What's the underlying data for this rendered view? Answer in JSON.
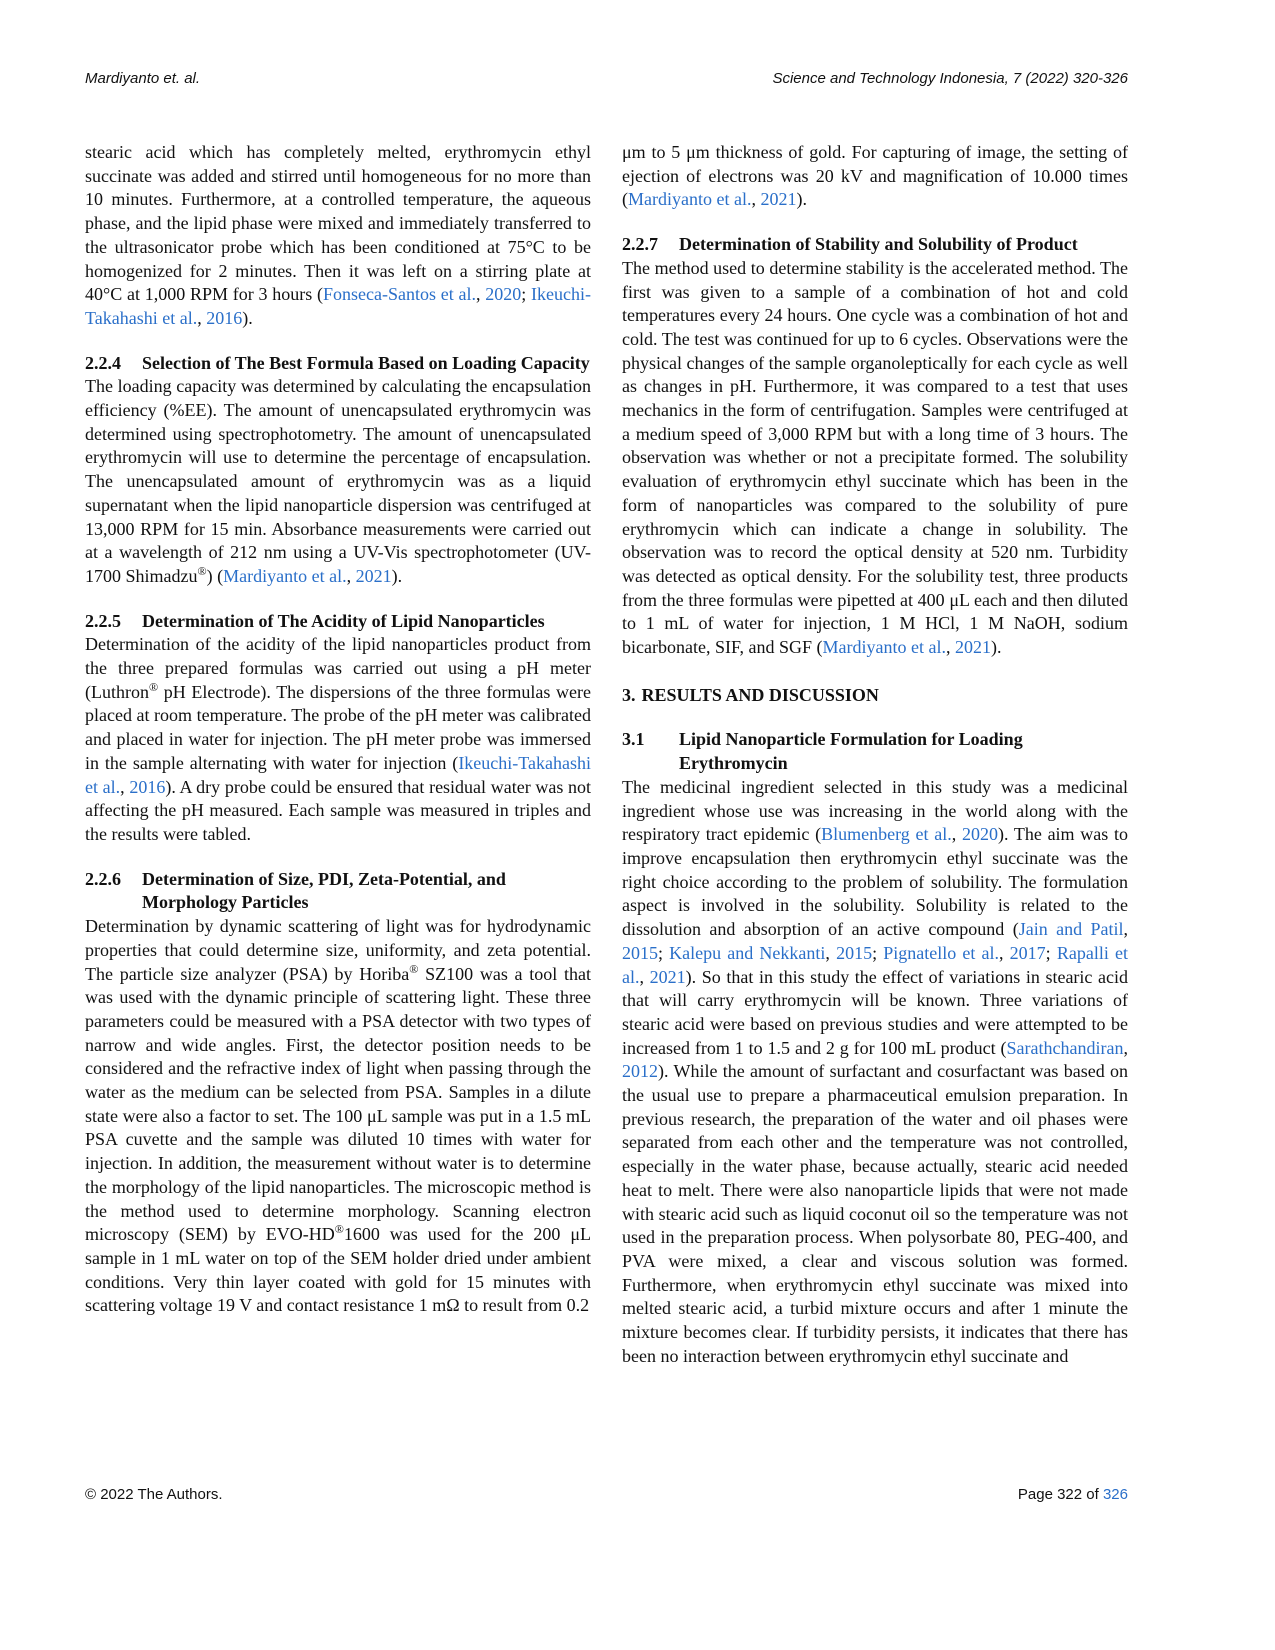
{
  "header": {
    "left": "Mardiyanto et. al.",
    "right": "Science and Technology Indonesia, 7 (2022) 320-326"
  },
  "columns": [
    {
      "blocks": [
        {
          "type": "para",
          "segments": [
            {
              "t": "stearic acid which has completely melted, erythromycin ethyl succinate was added and stirred until homogeneous for no more than 10 minutes. Furthermore, at a controlled temperature, the aqueous phase, and the lipid phase were mixed and immediately transferred to the ultrasonicator probe which has been conditioned at 75°C to be homogenized for 2 minutes. Then it was left on a stirring plate at 40°C at 1,000 RPM for 3 hours ("
            },
            {
              "t": "Fonseca-Santos et al.",
              "link": true
            },
            {
              "t": ", "
            },
            {
              "t": "2020",
              "link": true
            },
            {
              "t": "; "
            },
            {
              "t": "Ikeuchi-Takahashi et al.",
              "link": true
            },
            {
              "t": ", "
            },
            {
              "t": "2016",
              "link": true
            },
            {
              "t": ")."
            }
          ]
        },
        {
          "type": "heading",
          "num": "2.2.4",
          "title": "Selection of The Best Formula Based on Loading Capacity"
        },
        {
          "type": "para",
          "segments": [
            {
              "t": "The loading capacity was determined by calculating the encapsulation efficiency (%EE). The amount of unencapsulated erythromycin was determined using spectrophotometry. The amount of unencapsulated erythromycin will use to determine the percentage of encapsulation. The unencapsulated amount of erythromycin was as a liquid supernatant when the lipid nanoparticle dispersion was centrifuged at 13,000 RPM for 15 min. Absorbance measurements were carried out at a wavelength of 212 nm using a UV-Vis spectrophotometer (UV-1700 Shimadzu"
            },
            {
              "t": "®",
              "sup": true
            },
            {
              "t": ") ("
            },
            {
              "t": "Mardiyanto et al.",
              "link": true
            },
            {
              "t": ", "
            },
            {
              "t": "2021",
              "link": true
            },
            {
              "t": ")."
            }
          ]
        },
        {
          "type": "heading",
          "num": "2.2.5",
          "title": "Determination of The Acidity of Lipid Nanoparticles"
        },
        {
          "type": "para",
          "segments": [
            {
              "t": "Determination of the acidity of the lipid nanoparticles product from the three prepared formulas was carried out using a pH meter (Luthron"
            },
            {
              "t": "®",
              "sup": true
            },
            {
              "t": " pH Electrode). The dispersions of the three formulas were placed at room temperature. The probe of the pH meter was calibrated and placed in water for injection. The pH meter probe was immersed in the sample alternating with water for injection ("
            },
            {
              "t": "Ikeuchi-Takahashi et al.",
              "link": true
            },
            {
              "t": ", "
            },
            {
              "t": "2016",
              "link": true
            },
            {
              "t": "). A dry probe could be ensured that residual water was not affecting the pH measured. Each sample was measured in triples and the results were tabled."
            }
          ]
        },
        {
          "type": "heading",
          "num": "2.2.6",
          "title": "Determination of Size, PDI, Zeta-Potential, and Morphology Particles"
        },
        {
          "type": "para",
          "segments": [
            {
              "t": "Determination by dynamic scattering of light was for hydrodynamic properties that could determine size, uniformity, and zeta potential. The particle size analyzer (PSA) by Horiba"
            },
            {
              "t": "®",
              "sup": true
            },
            {
              "t": " SZ100 was a tool that was used with the dynamic principle of scattering light. These three parameters could be measured with a PSA detector with two types of narrow and wide angles. First, the detector position needs to be considered and the refractive index of light when passing through the water as the medium can be selected from PSA. Samples in a dilute state were also a factor to set. The 100 μL sample was put in a 1.5 mL PSA cuvette and the sample was diluted 10 times with water for injection. In addition, the measurement without water is to determine the morphology of the lipid nanoparticles. The microscopic method is the method used to determine morphology. Scanning electron microscopy (SEM) by EVO-HD"
            },
            {
              "t": "®",
              "sup": true
            },
            {
              "t": "1600 was used for the 200 μL sample in 1 mL water on top of the SEM holder dried under ambient conditions. Very thin layer coated with gold for 15 minutes with scattering voltage 19 V and contact resistance 1 mΩ to result from 0.2"
            }
          ]
        }
      ]
    },
    {
      "blocks": [
        {
          "type": "para",
          "segments": [
            {
              "t": "μm to 5 μm thickness of gold. For capturing of image, the setting of ejection of electrons was 20 kV and magnification of 10.000 times ("
            },
            {
              "t": "Mardiyanto et al.",
              "link": true
            },
            {
              "t": ", "
            },
            {
              "t": "2021",
              "link": true
            },
            {
              "t": ")."
            }
          ]
        },
        {
          "type": "heading",
          "num": "2.2.7",
          "title": "Determination of Stability and Solubility of Product"
        },
        {
          "type": "para",
          "segments": [
            {
              "t": "The method used to determine stability is the accelerated method. The first was given to a sample of a combination of hot and cold temperatures every 24 hours. One cycle was a combination of hot and cold. The test was continued for up to 6 cycles. Observations were the physical changes of the sample organoleptically for each cycle as well as changes in pH. Furthermore, it was compared to a test that uses mechanics in the form of centrifugation. Samples were centrifuged at a medium speed of 3,000 RPM but with a long time of 3 hours. The observation was whether or not a precipitate formed. The solubility evaluation of erythromycin ethyl succinate which has been in the form of nanoparticles was compared to the solubility of pure erythromycin which can indicate a change in solubility. The observation was to record the optical density at 520 nm. Turbidity was detected as optical density. For the solubility test, three products from the three formulas were pipetted at 400 μL each and then diluted to 1 mL of water for injection, 1 M HCl, 1 M NaOH, sodium bicarbonate, SIF, and SGF ("
            },
            {
              "t": "Mardiyanto et al.",
              "link": true
            },
            {
              "t": ", "
            },
            {
              "t": "2021",
              "link": true
            },
            {
              "t": ")."
            }
          ]
        },
        {
          "type": "section",
          "num": "3.",
          "title": "RESULTS AND DISCUSSION"
        },
        {
          "type": "heading",
          "num": "3.1",
          "title": "Lipid Nanoparticle Formulation for Loading Erythromycin"
        },
        {
          "type": "para",
          "segments": [
            {
              "t": "The medicinal ingredient selected in this study was a medicinal ingredient whose use was increasing in the world along with the respiratory tract epidemic ("
            },
            {
              "t": "Blumenberg et al.",
              "link": true
            },
            {
              "t": ", "
            },
            {
              "t": "2020",
              "link": true
            },
            {
              "t": "). The aim was to improve encapsulation then erythromycin ethyl succinate was the right choice according to the problem of solubility. The formulation aspect is involved in the solubility. Solubility is related to the dissolution and absorption of an active compound ("
            },
            {
              "t": "Jain and Patil",
              "link": true
            },
            {
              "t": ", "
            },
            {
              "t": "2015",
              "link": true
            },
            {
              "t": "; "
            },
            {
              "t": "Kalepu and Nekkanti",
              "link": true
            },
            {
              "t": ", "
            },
            {
              "t": "2015",
              "link": true
            },
            {
              "t": "; "
            },
            {
              "t": "Pignatello et al.",
              "link": true
            },
            {
              "t": ", "
            },
            {
              "t": "2017",
              "link": true
            },
            {
              "t": "; "
            },
            {
              "t": "Rapalli et al.",
              "link": true
            },
            {
              "t": ", "
            },
            {
              "t": "2021",
              "link": true
            },
            {
              "t": "). So that in this study the effect of variations in stearic acid that will carry erythromycin will be known. Three variations of stearic acid were based on previous studies and were attempted to be increased from 1 to 1.5 and 2 g for 100 mL product ("
            },
            {
              "t": "Sarathchandiran",
              "link": true
            },
            {
              "t": ", "
            },
            {
              "t": "2012",
              "link": true
            },
            {
              "t": "). While the amount of surfactant and cosurfactant was based on the usual use to prepare a pharmaceutical emulsion preparation. In previous research, the preparation of the water and oil phases were separated from each other and the temperature was not controlled, especially in the water phase, because actually, stearic acid needed heat to melt. There were also nanoparticle lipids that were not made with stearic acid such as liquid coconut oil so the temperature was not used in the preparation process. When polysorbate 80, PEG-400, and PVA were mixed, a clear and viscous solution was formed. Furthermore, when erythromycin ethyl succinate was mixed into melted stearic acid, a turbid mixture occurs and after 1 minute the mixture becomes clear. If turbidity persists, it indicates that there has been no interaction between erythromycin ethyl succinate and"
            }
          ]
        }
      ]
    }
  ],
  "footer": {
    "left": "© 2022 The Authors.",
    "page_prefix": "Page 322 of ",
    "page_total": "326"
  },
  "colors": {
    "link": "#2a6fc9",
    "text": "#111111"
  }
}
